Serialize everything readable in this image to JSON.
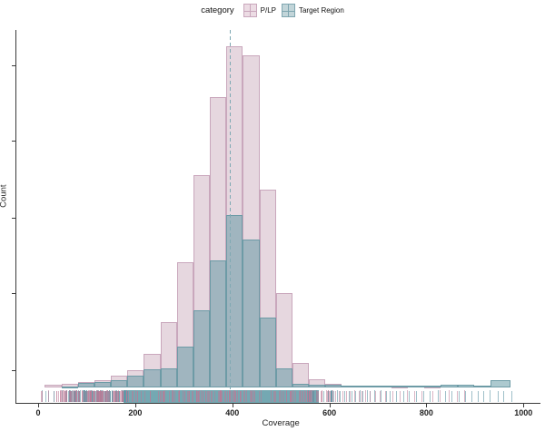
{
  "chart_data": {
    "type": "histogram",
    "title": "",
    "xlabel": "Coverage",
    "ylabel": "Count",
    "x_ticks": [
      0,
      200,
      400,
      600,
      800,
      1000
    ],
    "xlim": [
      -16,
      1035
    ],
    "y_axis": {
      "tick_count": 5,
      "numeric_labels_visible": false
    },
    "grid": "off",
    "legend": {
      "title": "category",
      "position": "top-center",
      "entries": [
        {
          "label": "P/LP",
          "key_fill": "#ecdce4",
          "key_border": "#c9a7bc"
        },
        {
          "label": "Target Region",
          "key_fill": "#c2d5d9",
          "key_border": "#7fa6b0"
        }
      ]
    },
    "median_line_x": 395,
    "bin_width": 34,
    "height_units": "plot pixels proportional to Count (y tick labels not shown in source image)",
    "series": [
      {
        "name": "P/LP",
        "fill": "rgba(184,141,164,0.35)",
        "border": "#c9a7bc",
        "bins": [
          [
            14,
            48,
            2.7
          ],
          [
            48,
            82,
            3.7
          ],
          [
            82,
            116,
            6.3
          ],
          [
            116,
            150,
            7.7
          ],
          [
            150,
            184,
            12.7
          ],
          [
            184,
            218,
            18.7
          ],
          [
            218,
            252,
            37
          ],
          [
            252,
            286,
            72
          ],
          [
            286,
            320,
            137.7
          ],
          [
            320,
            354,
            234.3
          ],
          [
            354,
            388,
            320.3
          ],
          [
            388,
            422,
            376.3
          ],
          [
            422,
            456,
            366.3
          ],
          [
            456,
            490,
            218.3
          ],
          [
            490,
            524,
            103.7
          ],
          [
            524,
            558,
            26.7
          ],
          [
            558,
            592,
            8.7
          ],
          [
            592,
            626,
            4.3
          ],
          [
            626,
            660,
            2.5
          ],
          [
            660,
            694,
            2
          ],
          [
            728,
            762,
            1.5
          ],
          [
            796,
            830,
            1.5
          ]
        ]
      },
      {
        "name": "Target Region",
        "fill": "rgba(90,147,159,0.5)",
        "border": "#6d9ba6",
        "bins": [
          [
            48,
            82,
            1.5
          ],
          [
            82,
            116,
            4.7
          ],
          [
            116,
            150,
            6.3
          ],
          [
            150,
            184,
            8.3
          ],
          [
            184,
            218,
            12.7
          ],
          [
            218,
            252,
            19.7
          ],
          [
            252,
            286,
            21
          ],
          [
            286,
            320,
            45.3
          ],
          [
            320,
            354,
            85.3
          ],
          [
            354,
            388,
            139.7
          ],
          [
            388,
            422,
            190.3
          ],
          [
            422,
            456,
            163.3
          ],
          [
            456,
            490,
            77.3
          ],
          [
            490,
            524,
            20.7
          ],
          [
            524,
            558,
            4.3
          ],
          [
            558,
            592,
            3
          ],
          [
            592,
            626,
            3
          ],
          [
            626,
            660,
            2
          ],
          [
            660,
            694,
            2
          ],
          [
            694,
            728,
            2
          ],
          [
            728,
            762,
            2
          ],
          [
            762,
            796,
            2
          ],
          [
            796,
            830,
            2.5
          ],
          [
            830,
            864,
            3.5
          ],
          [
            864,
            898,
            3
          ],
          [
            898,
            932,
            2.5
          ],
          [
            932,
            974,
            8.5
          ]
        ]
      }
    ],
    "rug": {
      "band": {
        "from": 175,
        "to": 578,
        "color": "#74a8b2"
      },
      "seed": 42,
      "noise": [
        {
          "from": 5,
          "to": 60,
          "count": 14,
          "color": "mix"
        },
        {
          "from": 55,
          "to": 185,
          "count": 130,
          "color": "teal"
        },
        {
          "from": 40,
          "to": 175,
          "count": 70,
          "color": "pink"
        },
        {
          "from": 100,
          "to": 565,
          "count": 150,
          "color": "pink"
        },
        {
          "from": 555,
          "to": 605,
          "count": 30,
          "color": "mix"
        }
      ],
      "ticks_teal": [
        603,
        609,
        616,
        622,
        631,
        640,
        646,
        654,
        663,
        668,
        677,
        684,
        693,
        705,
        716,
        724,
        738,
        752,
        764,
        779,
        793,
        806,
        824,
        838,
        852,
        867,
        879,
        893,
        906,
        918,
        931,
        947,
        958,
        975
      ],
      "ticks_pink": [
        606,
        612,
        619,
        627,
        634,
        642,
        651,
        660,
        666,
        674,
        683,
        695,
        703,
        715,
        729,
        745,
        759,
        775,
        790,
        812,
        828,
        846,
        862,
        878
      ]
    }
  },
  "colors": {
    "axis": "#3a3a3a",
    "median_line": "#7fa9b3",
    "rug_pink": "rgba(190,120,150,0.55)",
    "rug_teal": "rgba(95,150,165,0.6)",
    "text": "#1f1f1f"
  }
}
